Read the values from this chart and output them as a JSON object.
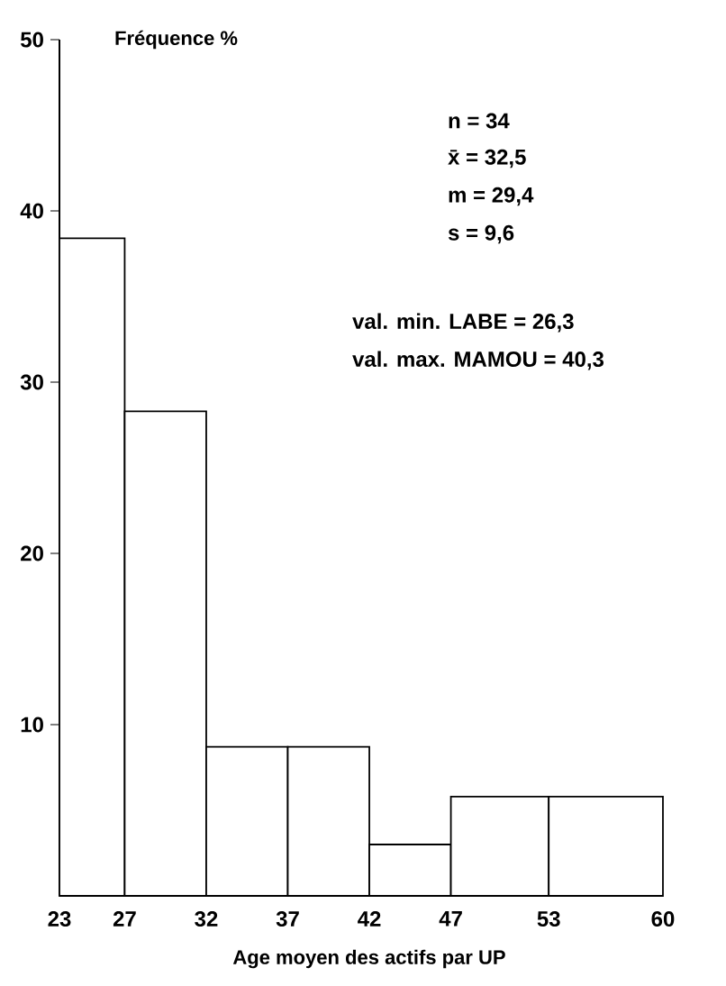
{
  "chart_data": {
    "type": "histogram",
    "ylabel": "Fréquence %",
    "xlabel": "Age moyen des actifs par UP",
    "bins": [
      23,
      27,
      32,
      37,
      42,
      47,
      53,
      60
    ],
    "values": [
      38.4,
      28.3,
      8.7,
      8.7,
      3.0,
      5.8,
      5.8
    ],
    "xlim": [
      23,
      60
    ],
    "xticks": [
      23,
      27,
      32,
      37,
      42,
      47,
      53,
      60
    ],
    "ylim": [
      0,
      50
    ],
    "yticks": [
      10,
      20,
      30,
      40,
      50
    ],
    "annotations": [
      "n = 34",
      "x̄ = 32,5",
      "m = 29,4",
      "s = 9,6",
      "val. min.  LABE = 26,3",
      "val. max.  MAMOU = 40,3"
    ]
  }
}
